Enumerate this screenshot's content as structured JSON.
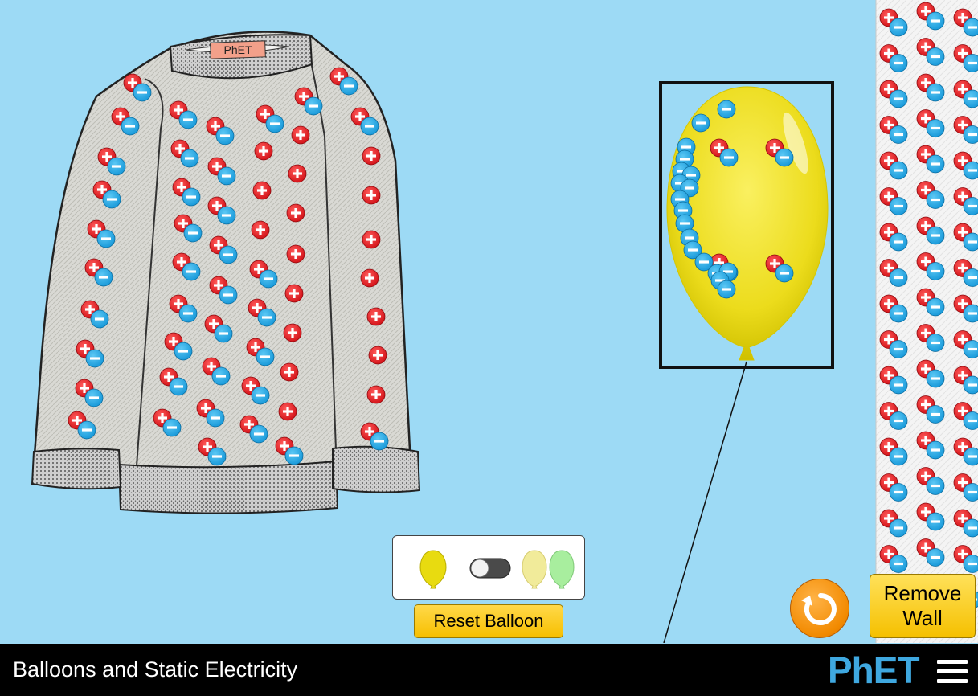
{
  "sim": {
    "title": "Balloons and Static Electricity"
  },
  "sweater": {
    "label": "PhET"
  },
  "controls": {
    "reset_balloon_label": "Reset Balloon",
    "remove_wall_label_line1": "Remove",
    "remove_wall_label_line2": "Wall",
    "two_balloon_toggle_on": false
  },
  "logo": {
    "text": "PhET"
  },
  "colors": {
    "background": "#9ddaf5",
    "positive_charge": "#e3141b",
    "negative_charge": "#1ba1e2",
    "balloon_yellow": "#f0e020",
    "button_yellow": "#f7c800",
    "reset_all_orange": "#f28a00",
    "navbar": "#000000"
  },
  "icons": {
    "reset_all": "reset-arrow-icon",
    "menu": "hamburger-menu-icon",
    "plus_charge": "plus-charge-icon",
    "minus_charge": "minus-charge-icon"
  }
}
